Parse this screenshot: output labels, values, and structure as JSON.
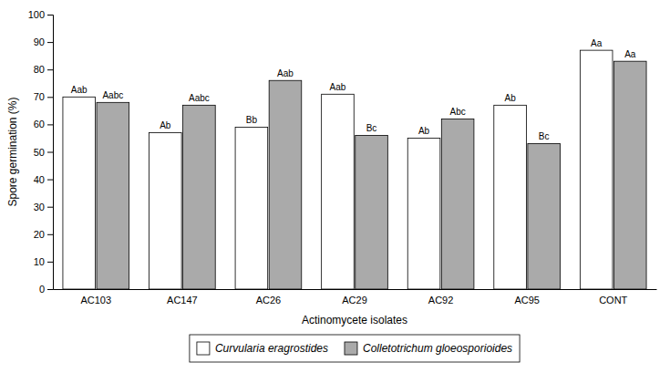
{
  "chart_data": {
    "type": "bar",
    "xlabel": "Actinomycete isolates",
    "ylabel": "Spore germination (%)",
    "categories": [
      "AC103",
      "AC147",
      "AC26",
      "AC29",
      "AC92",
      "AC95",
      "CONT"
    ],
    "series": [
      {
        "name": "Curvularia eragrostides",
        "color": "#ffffff",
        "values": [
          70,
          57,
          59,
          71,
          55,
          67,
          87
        ],
        "annotations": [
          "Aab",
          "Ab",
          "Bb",
          "Aab",
          "Ab",
          "Ab",
          "Aa"
        ]
      },
      {
        "name": "Colletotrichum gloeosporioides",
        "color": "#aaaaaa",
        "values": [
          68,
          67,
          76,
          56,
          62,
          53,
          83
        ],
        "annotations": [
          "Aabc",
          "Aabc",
          "Aab",
          "Bc",
          "Abc",
          "Bc",
          "Aa"
        ]
      }
    ],
    "ylim": [
      0,
      100
    ],
    "yticks": [
      0,
      10,
      20,
      30,
      40,
      50,
      60,
      70,
      80,
      90,
      100
    ],
    "grid": false,
    "legend": "bottom"
  }
}
